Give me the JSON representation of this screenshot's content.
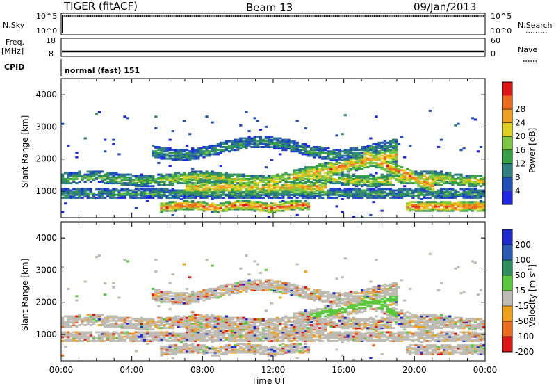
{
  "header": {
    "radar": "TIGER (fitACF)",
    "beam": "Beam 13",
    "date": "09/Jan/2013"
  },
  "status_panels": {
    "nsky_label": "N.Sky",
    "nsearch_label": "N.Search",
    "log_hi": "10^5",
    "log_lo": "10^0",
    "freq_label": "Freq.",
    "freq_unit": "[MHz]",
    "freq_ticks": [
      "18",
      "8"
    ],
    "nave_label": "Nave",
    "nave_ticks": [
      "60",
      "0"
    ],
    "cpid_label": "CPID",
    "cpid_text": "normal (fast) 151"
  },
  "chart_data": [
    {
      "type": "heatmap",
      "title": "",
      "ylabel": "Slant Range [km]",
      "xlabel": "",
      "x_ticks": [
        "00:00",
        "04:00",
        "08:00",
        "12:00",
        "16:00",
        "20:00",
        "00:00"
      ],
      "y_ticks": [
        "1000",
        "2000",
        "3000",
        "4000"
      ],
      "ylim": [
        180,
        4500
      ],
      "colorbar": {
        "label": "Power [dB]",
        "ticks": [
          "4",
          "8",
          "12",
          "16",
          "20",
          "24",
          "28"
        ],
        "colors": [
          "#1f27e6",
          "#1f4fb8",
          "#2f7f7f",
          "#35a043",
          "#7cc843",
          "#e0d020",
          "#f0a020",
          "#ec6a1c",
          "#e01414"
        ]
      }
    },
    {
      "type": "heatmap",
      "title": "",
      "ylabel": "Slant Range [km]",
      "xlabel": "Time UT",
      "x_ticks": [
        "00:00",
        "04:00",
        "08:00",
        "12:00",
        "16:00",
        "20:00",
        "00:00"
      ],
      "y_ticks": [
        "1000",
        "2000",
        "3000",
        "4000"
      ],
      "ylim": [
        180,
        4500
      ],
      "colorbar": {
        "label": "Velocity [m s^-1]",
        "ticks": [
          "200",
          "100",
          "50",
          "15",
          "-15",
          "-50",
          "-100",
          "-200"
        ],
        "colors": [
          "#1e2ad0",
          "#2a5ab4",
          "#2e8e5a",
          "#5ac83c",
          "#bebcb2",
          "#f0a018",
          "#ec6a1c",
          "#e01414"
        ]
      }
    }
  ]
}
